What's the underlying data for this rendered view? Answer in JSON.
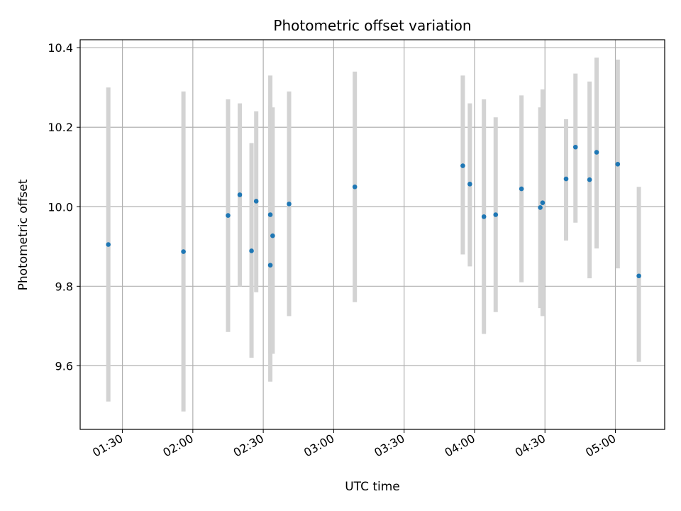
{
  "chart_data": {
    "type": "scatter",
    "title": "Photometric offset variation",
    "xlabel": "UTC time",
    "ylabel": "Photometric offset",
    "x_unit": "UTC time (HH:MM)",
    "xlim": [
      "01:12",
      "05:21"
    ],
    "ylim": [
      9.44,
      10.42
    ],
    "x_ticks": [
      "01:30",
      "02:00",
      "02:30",
      "03:00",
      "03:30",
      "04:00",
      "04:30",
      "05:00"
    ],
    "y_ticks": [
      9.6,
      9.8,
      10.0,
      10.2,
      10.4
    ],
    "y_tick_labels": [
      "9.6",
      "9.8",
      "10.0",
      "10.2",
      "10.4"
    ],
    "grid": true,
    "colors": {
      "point": "#1f77b4",
      "errorbar": "#d3d3d3",
      "grid": "#b0b0b0"
    },
    "points": [
      {
        "x": "01:24",
        "y": 9.905,
        "ylow": 9.51,
        "yhigh": 10.3
      },
      {
        "x": "01:56",
        "y": 9.887,
        "ylow": 9.485,
        "yhigh": 10.29
      },
      {
        "x": "02:15",
        "y": 9.978,
        "ylow": 9.685,
        "yhigh": 10.27
      },
      {
        "x": "02:20",
        "y": 10.03,
        "ylow": 9.8,
        "yhigh": 10.26
      },
      {
        "x": "02:25",
        "y": 9.889,
        "ylow": 9.62,
        "yhigh": 10.16
      },
      {
        "x": "02:27",
        "y": 10.014,
        "ylow": 9.785,
        "yhigh": 10.24
      },
      {
        "x": "02:33",
        "y": 9.98,
        "ylow": 9.63,
        "yhigh": 10.33
      },
      {
        "x": "02:33",
        "y": 9.853,
        "ylow": 9.56,
        "yhigh": 10.255
      },
      {
        "x": "02:34",
        "y": 9.927,
        "ylow": 9.63,
        "yhigh": 10.25
      },
      {
        "x": "02:41",
        "y": 10.007,
        "ylow": 9.725,
        "yhigh": 10.29
      },
      {
        "x": "03:09",
        "y": 10.05,
        "ylow": 9.76,
        "yhigh": 10.34
      },
      {
        "x": "03:55",
        "y": 10.103,
        "ylow": 9.88,
        "yhigh": 10.33
      },
      {
        "x": "03:58",
        "y": 10.057,
        "ylow": 9.85,
        "yhigh": 10.26
      },
      {
        "x": "04:04",
        "y": 9.975,
        "ylow": 9.68,
        "yhigh": 10.27
      },
      {
        "x": "04:09",
        "y": 9.98,
        "ylow": 9.735,
        "yhigh": 10.225
      },
      {
        "x": "04:20",
        "y": 10.045,
        "ylow": 9.81,
        "yhigh": 10.28
      },
      {
        "x": "04:28",
        "y": 9.998,
        "ylow": 9.745,
        "yhigh": 10.25
      },
      {
        "x": "04:29",
        "y": 10.01,
        "ylow": 9.725,
        "yhigh": 10.295
      },
      {
        "x": "04:39",
        "y": 10.07,
        "ylow": 9.915,
        "yhigh": 10.22
      },
      {
        "x": "04:43",
        "y": 10.15,
        "ylow": 9.96,
        "yhigh": 10.335
      },
      {
        "x": "04:49",
        "y": 10.068,
        "ylow": 9.82,
        "yhigh": 10.315
      },
      {
        "x": "04:52",
        "y": 10.137,
        "ylow": 9.895,
        "yhigh": 10.375
      },
      {
        "x": "05:01",
        "y": 10.107,
        "ylow": 9.845,
        "yhigh": 10.37
      },
      {
        "x": "05:10",
        "y": 9.826,
        "ylow": 9.61,
        "yhigh": 10.05
      }
    ]
  }
}
